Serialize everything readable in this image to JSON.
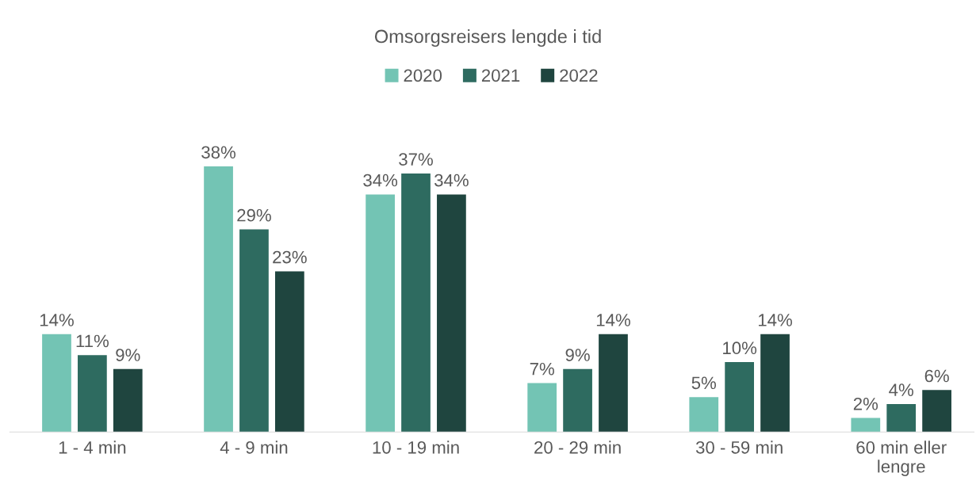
{
  "chart_data": {
    "type": "bar",
    "title": "Omsorgsreisers lengde i tid",
    "categories": [
      "1 - 4 min",
      "4 - 9 min",
      "10 - 19 min",
      "20 - 29 min",
      "30 - 59 min",
      "60 min eller\nlengre"
    ],
    "series": [
      {
        "name": "2020",
        "color": "#73c4b4",
        "values": [
          14,
          38,
          34,
          7,
          5,
          2
        ],
        "value_labels": [
          "14%",
          "38%",
          "34%",
          "7%",
          "5%",
          "2%"
        ]
      },
      {
        "name": "2021",
        "color": "#2e6b60",
        "values": [
          11,
          29,
          37,
          9,
          10,
          4
        ],
        "value_labels": [
          "11%",
          "29%",
          "37%",
          "9%",
          "10%",
          "4%"
        ]
      },
      {
        "name": "2022",
        "color": "#1f453f",
        "values": [
          9,
          23,
          34,
          14,
          14,
          6
        ],
        "value_labels": [
          "9%",
          "23%",
          "34%",
          "14%",
          "14%",
          "6%"
        ]
      }
    ],
    "tick_labels": "x",
    "legend": "top"
  }
}
